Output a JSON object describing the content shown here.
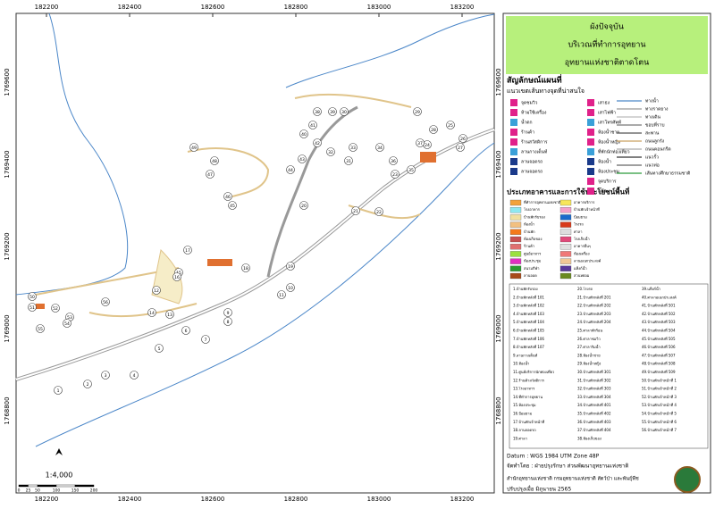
{
  "map": {
    "x_labels": [
      "182200",
      "182400",
      "182600",
      "182800",
      "183000",
      "183200"
    ],
    "y_labels": [
      "1769600",
      "1769400",
      "1769200",
      "1769000",
      "1768800"
    ],
    "building_numbers": [
      "1",
      "2",
      "3",
      "4",
      "5",
      "6",
      "7",
      "8",
      "9",
      "10",
      "11",
      "12",
      "13",
      "14",
      "15",
      "16",
      "17",
      "18",
      "19",
      "20",
      "21",
      "22",
      "23",
      "24",
      "25",
      "26",
      "27",
      "28",
      "29",
      "30",
      "31",
      "32",
      "33",
      "34",
      "35",
      "36",
      "37",
      "38",
      "39",
      "40",
      "41",
      "42",
      "43",
      "44",
      "45",
      "46",
      "47",
      "48",
      "49",
      "50",
      "51",
      "52",
      "53",
      "54",
      "55",
      "56"
    ],
    "scale": "1:4,000",
    "scale_bar_labels": [
      "0",
      "25",
      "50",
      "100",
      "150",
      "200"
    ]
  },
  "legend": {
    "title_lines": [
      "ผังปัจจุบัน",
      "บริเวณที่ทำการอุทยาน",
      "อุทยานแห่งชาติตาดโตน"
    ],
    "symbols_heading": "สัญลักษณ์แผนที่",
    "routes_heading": "แนวเขตเส้นทางจุดที่น่าสนใจ",
    "point_symbols": [
      "จุดชมวิว",
      "ห้ามใช้เครื่อง",
      "น้ำตก",
      "ร้านค้า",
      "ร้านสวัสดิการ",
      "ลานกางเต็นท์",
      "ลานจอดรถ",
      "ลานจอดรถ",
      "เสาธง",
      "เสาไฟฟ้า",
      "เสาโทรศัพท์",
      "ห้องน้ำชาย",
      "ห้องน้ำหญิง",
      "ที่พักนักท่องเที่ยว",
      "ห้องน้ำ",
      "ห้องประชุม",
      "จุดบริการ",
      "แก๊ส"
    ],
    "line_symbols": [
      "ทางน้ำ",
      "ทางราดยาง",
      "ทางเดิน",
      "ขอบที่ราบ",
      "สะพาน",
      "ถนนลูกรัง",
      "ถนนคอนกรีต",
      "แนวรั้ว",
      "แนวท่อ",
      "เส้นทางศึกษาธรรมชาติ"
    ],
    "building_heading": "ประเภทอาคารและการใช้ประโยชน์พื้นที่",
    "building_types": [
      "ที่ทำการอุทยานแห่งชาติ",
      "อาคารบริการ",
      "โรงอาหาร",
      "บ้านพักเจ้าหน้าที่",
      "บ้านพักรับรอง",
      "ป้อมยาม",
      "ห้องน้ำ",
      "โรงรถ",
      "บ้านพัก",
      "ศาลา",
      "ห้องเก็บของ",
      "โรงเก็บน้ำ",
      "ร้านค้า",
      "อาคารอื่นๆ",
      "ศูนย์อาหาร",
      "ห้องเครื่อง",
      "ห้องประชุม",
      "ลานอเนกประสงค์",
      "สนามกีฬา",
      "แท็งก์น้ำ",
      "ลานจอด",
      "สวนหย่อม"
    ],
    "building_list": [
      "1.บ้านพักรับรอง",
      "2.บ้านพักหลังที่ 101",
      "3.บ้านพักหลังที่ 102",
      "4.บ้านพักหลังที่ 103",
      "5.บ้านพักหลังที่ 104",
      "6.บ้านพักหลังที่ 105",
      "7.บ้านพักหลังที่ 106",
      "8.บ้านพักหลังที่ 107",
      "9.ลานกางเต็นท์",
      "10.ห้องน้ำ",
      "11.ศูนย์บริการนักท่องเที่ยว",
      "12.ร้านค้าสวัสดิการ",
      "13.โรงอาหาร",
      "14.ที่ทำการอุทยาน",
      "15.ห้องประชุม",
      "16.ป้อมยาม",
      "17.บ้านพักเจ้าหน้าที่",
      "18.ลานจอดรถ",
      "19.ศาลา",
      "20.โรงรถ",
      "21.บ้านพักหลังที่ 201",
      "22.บ้านพักหลังที่ 202",
      "23.บ้านพักหลังที่ 203",
      "24.บ้านพักหลังที่ 204",
      "25.ศาลาพักร้อน",
      "26.ศาลาชมวิว",
      "27.ศาลาริมน้ำ",
      "28.ห้องน้ำชาย",
      "29.ห้องน้ำหญิง",
      "30.บ้านพักหลังที่ 301",
      "31.บ้านพักหลังที่ 302",
      "32.บ้านพักหลังที่ 303",
      "33.บ้านพักหลังที่ 304",
      "34.บ้านพักหลังที่ 401",
      "35.บ้านพักหลังที่ 402",
      "36.บ้านพักหลังที่ 403",
      "37.บ้านพักหลังที่ 404",
      "38.ห้องเก็บของ",
      "39.แท็งก์น้ำ",
      "40.ศาลาอเนกประสงค์",
      "41.บ้านพักหลังที่ 501",
      "42.บ้านพักหลังที่ 502",
      "43.บ้านพักหลังที่ 503",
      "44.บ้านพักหลังที่ 504",
      "45.บ้านพักหลังที่ 505",
      "46.บ้านพักหลังที่ 506",
      "47.บ้านพักหลังที่ 507",
      "48.บ้านพักหลังที่ 508",
      "49.บ้านพักหลังที่ 509",
      "50.บ้านพักเจ้าหน้าที่ 1",
      "51.บ้านพักเจ้าหน้าที่ 2",
      "52.บ้านพักเจ้าหน้าที่ 3",
      "53.บ้านพักเจ้าหน้าที่ 4",
      "54.บ้านพักเจ้าหน้าที่ 5",
      "55.บ้านพักเจ้าหน้าที่ 6",
      "56.บ้านพักเจ้าหน้าที่ 7"
    ],
    "datum": "Datum : WGS 1984 UTM Zone 48P",
    "credits": [
      "จัดทำโดย : ฝ่ายปรุงรักษา ส่วนพัฒนาอุทยานแห่งชาติ",
      "สำนักอุทยานแห่งชาติ กรมอุทยานแห่งชาติ สัตว์ป่า และพันธุ์พืช",
      "ปรับปรุงเมื่อ มิถุนายน 2565"
    ]
  }
}
